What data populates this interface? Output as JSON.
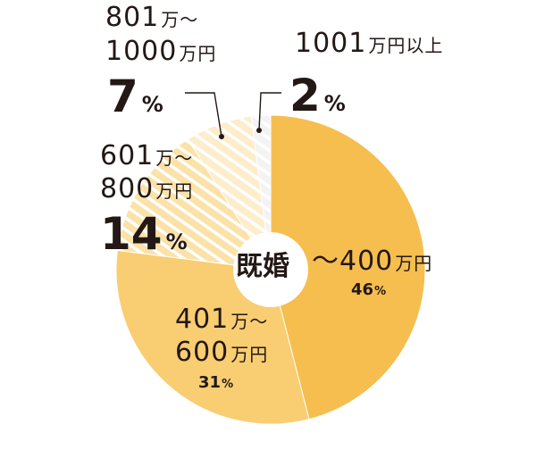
{
  "chart_data": {
    "type": "pie",
    "center_label": "既婚",
    "categories": [
      "〜400万円",
      "401万〜600万円",
      "601万〜800万円",
      "801万〜1000万円",
      "1001万円以上"
    ],
    "values": [
      46,
      31,
      14,
      7,
      2
    ],
    "unit": "%",
    "slices": [
      {
        "num_line1": "〜400",
        "unit_line1": "万円",
        "num_line2": "",
        "unit_line2": "",
        "value": 46,
        "color": "#F6BE4F",
        "pattern": "solid"
      },
      {
        "num_line1": "401",
        "unit_line1": "万〜",
        "num_line2": "600",
        "unit_line2": "万円",
        "value": 31,
        "color": "#F9CD72",
        "pattern": "solid"
      },
      {
        "num_line1": "601",
        "unit_line1": "万〜",
        "num_line2": "800",
        "unit_line2": "万円",
        "value": 14,
        "color": "#FBE2A8",
        "pattern": "hatch"
      },
      {
        "num_line1": "801",
        "unit_line1": "万〜",
        "num_line2": "1000",
        "unit_line2": "万円",
        "value": 7,
        "color": "#FDEDCB",
        "pattern": "hatch"
      },
      {
        "num_line1": "1001",
        "unit_line1": "万円以上",
        "num_line2": "",
        "unit_line2": "",
        "value": 2,
        "color": "#F3F3F3",
        "pattern": "hatch"
      }
    ]
  }
}
